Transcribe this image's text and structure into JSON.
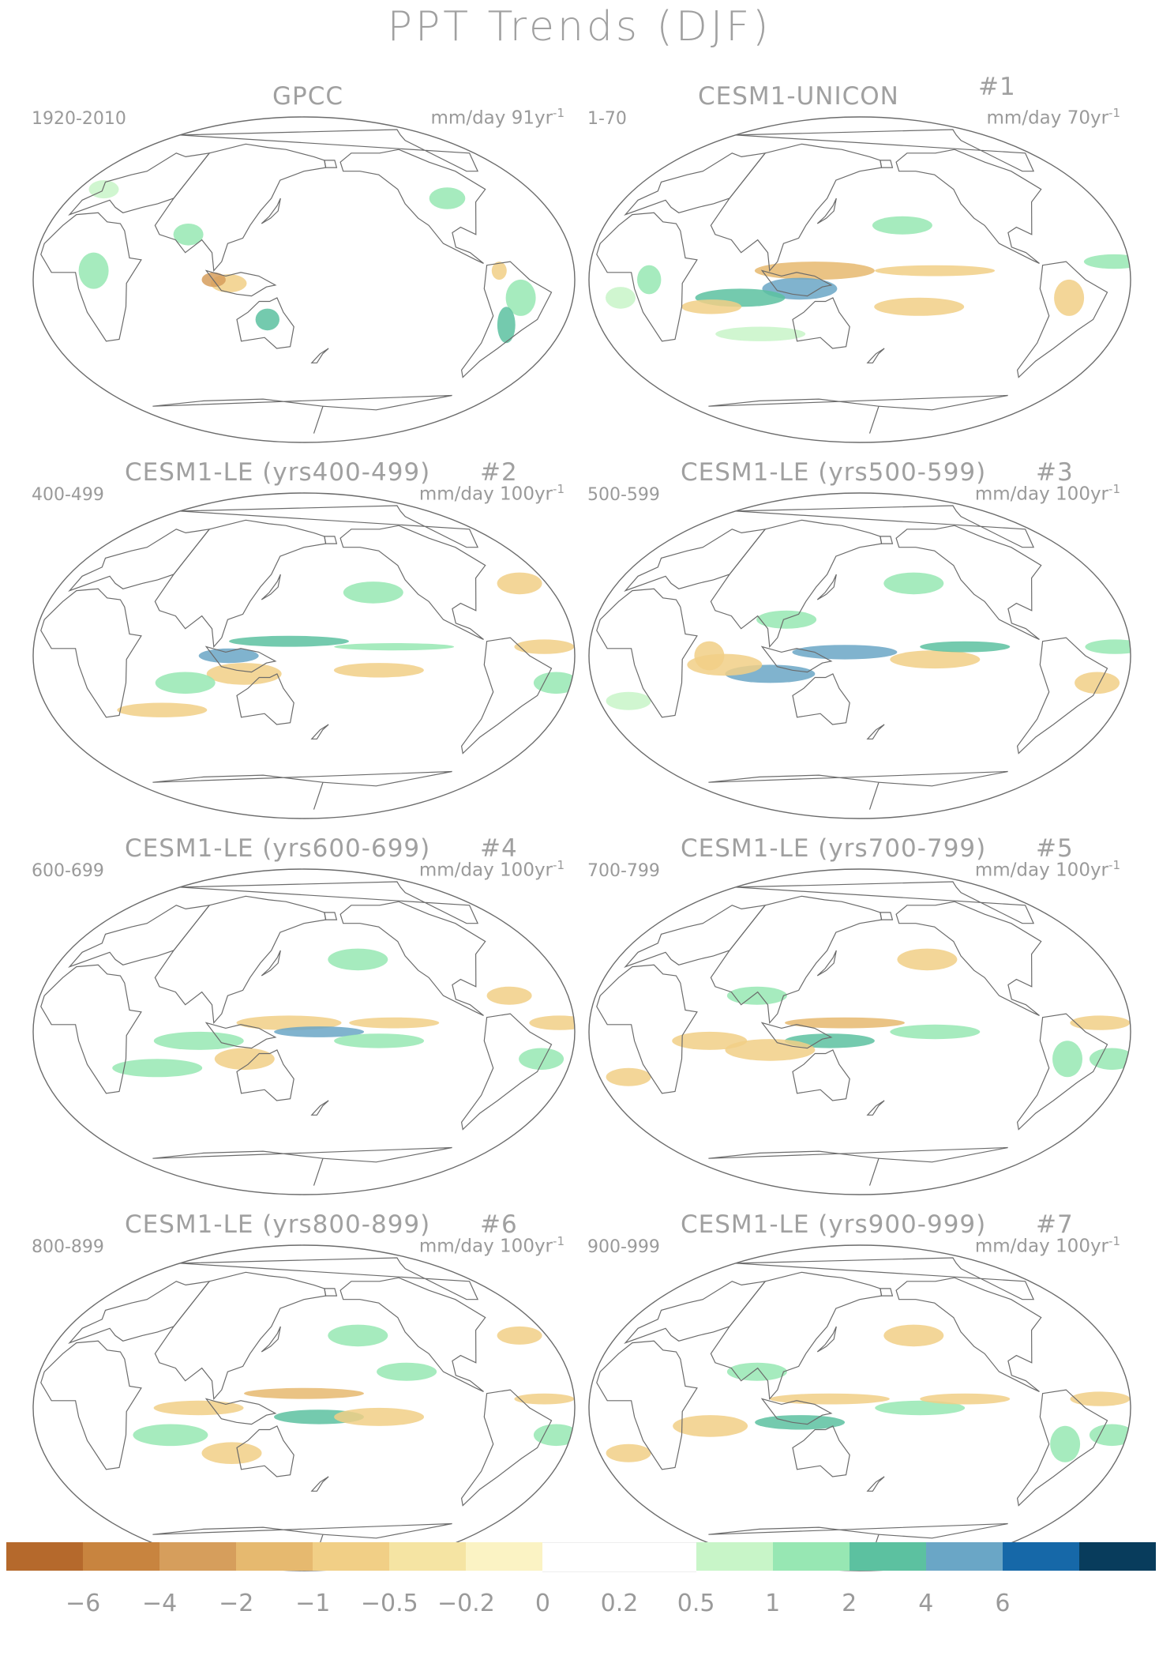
{
  "title": "PPT Trends (DJF)",
  "panels": [
    {
      "title": "GPCC",
      "number": "",
      "range": "1920-2010",
      "units": "mm/day 91yr",
      "units_exp": "-1"
    },
    {
      "title": "CESM1-UNICON",
      "number": "#1",
      "range": "1-70",
      "units": "mm/day 70yr",
      "units_exp": "-1"
    },
    {
      "title": "CESM1-LE (yrs400-499)",
      "number": "#2",
      "range": "400-499",
      "units": "mm/day 100yr",
      "units_exp": "-1"
    },
    {
      "title": "CESM1-LE (yrs500-599)",
      "number": "#3",
      "range": "500-599",
      "units": "mm/day 100yr",
      "units_exp": "-1"
    },
    {
      "title": "CESM1-LE (yrs600-699)",
      "number": "#4",
      "range": "600-699",
      "units": "mm/day 100yr",
      "units_exp": "-1"
    },
    {
      "title": "CESM1-LE (yrs700-799)",
      "number": "#5",
      "range": "700-799",
      "units": "mm/day 100yr",
      "units_exp": "-1"
    },
    {
      "title": "CESM1-LE (yrs800-899)",
      "number": "#6",
      "range": "800-899",
      "units": "mm/day 100yr",
      "units_exp": "-1"
    },
    {
      "title": "CESM1-LE (yrs900-999)",
      "number": "#7",
      "range": "900-999",
      "units": "mm/day 100yr",
      "units_exp": "-1"
    }
  ],
  "colorbar": {
    "colors": [
      "#b5692c",
      "#c8843f",
      "#d69e5c",
      "#e6b96f",
      "#f1cf86",
      "#f5e4a3",
      "#fbf3c4",
      "#ffffff",
      "#ffffff",
      "#c8f5c8",
      "#97e7b3",
      "#5cc1a0",
      "#6aa6c6",
      "#1668a8",
      "#083c5c"
    ],
    "labels": [
      "−6",
      "−4",
      "−2",
      "−1",
      "−0.5",
      "−0.2",
      "0",
      "0.2",
      "0.5",
      "1",
      "2",
      "4",
      "6"
    ]
  }
}
